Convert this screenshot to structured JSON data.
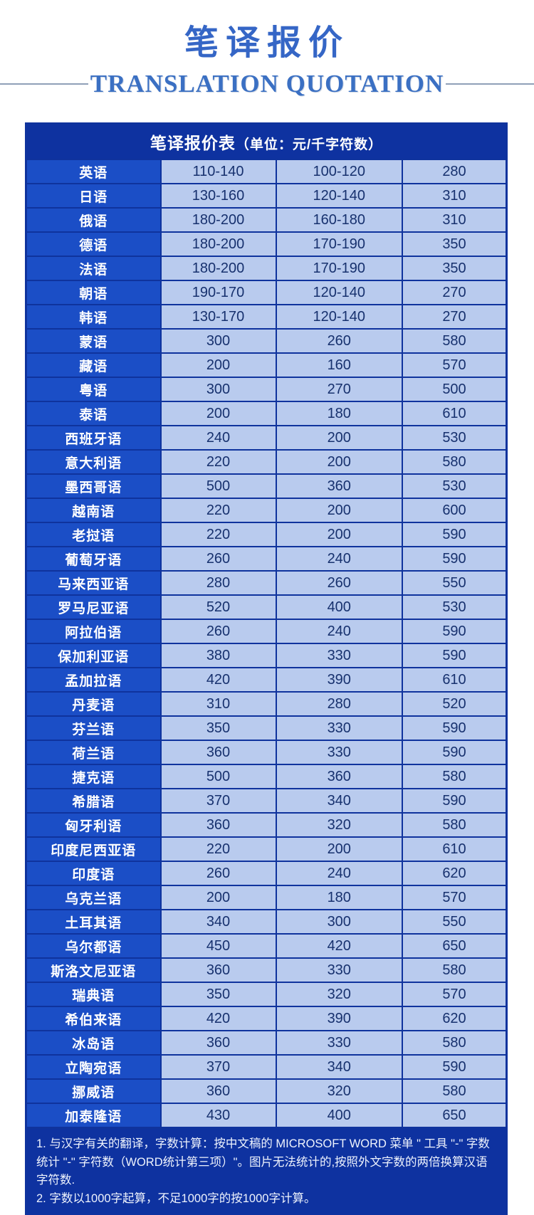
{
  "page": {
    "title": "笔译报价",
    "subtitle": "TRANSLATION QUOTATION"
  },
  "table": {
    "title": "笔译报价表",
    "unit_label": "（单位：元/千字符数）",
    "rows": [
      {
        "language": "英语",
        "prices": [
          "110-140",
          "100-120",
          "280"
        ]
      },
      {
        "language": "日语",
        "prices": [
          "130-160",
          "120-140",
          "310"
        ]
      },
      {
        "language": "俄语",
        "prices": [
          "180-200",
          "160-180",
          "310"
        ]
      },
      {
        "language": "德语",
        "prices": [
          "180-200",
          "170-190",
          "350"
        ]
      },
      {
        "language": "法语",
        "prices": [
          "180-200",
          "170-190",
          "350"
        ]
      },
      {
        "language": "朝语",
        "prices": [
          "190-170",
          "120-140",
          "270"
        ]
      },
      {
        "language": "韩语",
        "prices": [
          "130-170",
          "120-140",
          "270"
        ]
      },
      {
        "language": "蒙语",
        "prices": [
          "300",
          "260",
          "580"
        ]
      },
      {
        "language": "藏语",
        "prices": [
          "200",
          "160",
          "570"
        ]
      },
      {
        "language": "粤语",
        "prices": [
          "300",
          "270",
          "500"
        ]
      },
      {
        "language": "泰语",
        "prices": [
          "200",
          "180",
          "610"
        ]
      },
      {
        "language": "西班牙语",
        "prices": [
          "240",
          "200",
          "530"
        ]
      },
      {
        "language": "意大利语",
        "prices": [
          "220",
          "200",
          "580"
        ]
      },
      {
        "language": "墨西哥语",
        "prices": [
          "500",
          "360",
          "530"
        ]
      },
      {
        "language": "越南语",
        "prices": [
          "220",
          "200",
          "600"
        ]
      },
      {
        "language": "老挝语",
        "prices": [
          "220",
          "200",
          "590"
        ]
      },
      {
        "language": "葡萄牙语",
        "prices": [
          "260",
          "240",
          "590"
        ]
      },
      {
        "language": "马来西亚语",
        "prices": [
          "280",
          "260",
          "550"
        ]
      },
      {
        "language": "罗马尼亚语",
        "prices": [
          "520",
          "400",
          "530"
        ]
      },
      {
        "language": "阿拉伯语",
        "prices": [
          "260",
          "240",
          "590"
        ]
      },
      {
        "language": "保加利亚语",
        "prices": [
          "380",
          "330",
          "590"
        ]
      },
      {
        "language": "孟加拉语",
        "prices": [
          "420",
          "390",
          "610"
        ]
      },
      {
        "language": "丹麦语",
        "prices": [
          "310",
          "280",
          "520"
        ]
      },
      {
        "language": "芬兰语",
        "prices": [
          "350",
          "330",
          "590"
        ]
      },
      {
        "language": "荷兰语",
        "prices": [
          "360",
          "330",
          "590"
        ]
      },
      {
        "language": "捷克语",
        "prices": [
          "500",
          "360",
          "580"
        ]
      },
      {
        "language": "希腊语",
        "prices": [
          "370",
          "340",
          "590"
        ]
      },
      {
        "language": "匈牙利语",
        "prices": [
          "360",
          "320",
          "580"
        ]
      },
      {
        "language": "印度尼西亚语",
        "prices": [
          "220",
          "200",
          "610"
        ]
      },
      {
        "language": "印度语",
        "prices": [
          "260",
          "240",
          "620"
        ]
      },
      {
        "language": "乌克兰语",
        "prices": [
          "200",
          "180",
          "570"
        ]
      },
      {
        "language": "土耳其语",
        "prices": [
          "340",
          "300",
          "550"
        ]
      },
      {
        "language": "乌尔都语",
        "prices": [
          "450",
          "420",
          "650"
        ]
      },
      {
        "language": "斯洛文尼亚语",
        "prices": [
          "360",
          "330",
          "580"
        ]
      },
      {
        "language": "瑞典语",
        "prices": [
          "350",
          "320",
          "570"
        ]
      },
      {
        "language": "希伯来语",
        "prices": [
          "420",
          "390",
          "620"
        ]
      },
      {
        "language": "冰岛语",
        "prices": [
          "360",
          "330",
          "580"
        ]
      },
      {
        "language": "立陶宛语",
        "prices": [
          "370",
          "340",
          "590"
        ]
      },
      {
        "language": "挪威语",
        "prices": [
          "360",
          "320",
          "580"
        ]
      },
      {
        "language": "加泰隆语",
        "prices": [
          "430",
          "400",
          "650"
        ]
      }
    ]
  },
  "notes": [
    "1. 与汉字有关的翻译，字数计算：按中文稿的 MICROSOFT WORD 菜单 \" 工具 \"-\" 字数统计 \"-\" 字符数（WORD统计第三项）\"。图片无法统计的,按照外文字数的两倍换算汉语字符数.",
    "2. 字数以1000字起算，不足1000字的按1000字计算。"
  ],
  "colors": {
    "title_blue": "#3566c6",
    "subtitle_blue": "#3b70c3",
    "header_navy": "#0e32a0",
    "language_cell_blue": "#1b4ec6",
    "price_cell_light_blue": "#b9cbee",
    "price_text_navy": "#17316e",
    "border_navy": "#0f339d",
    "rule_gray": "#8fa0b8"
  }
}
